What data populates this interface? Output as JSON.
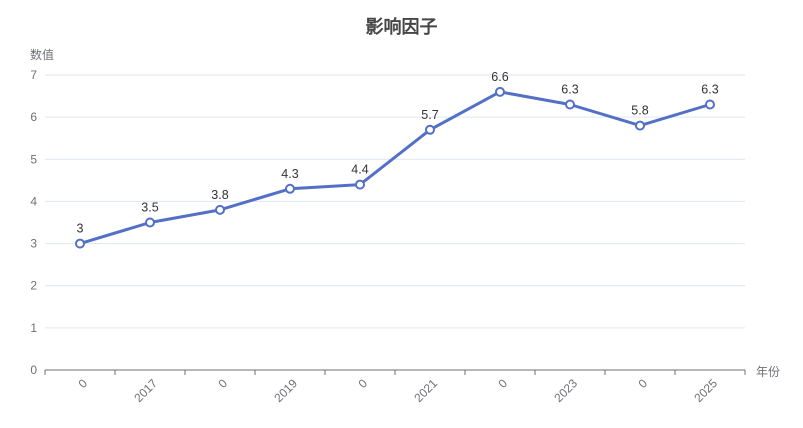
{
  "title": "影响因子",
  "chart_data": {
    "type": "line",
    "title": "影响因子",
    "categories": [
      "0",
      "2017",
      "0",
      "2019",
      "0",
      "2021",
      "0",
      "2023",
      "0",
      "2025"
    ],
    "values": [
      3,
      3.5,
      3.8,
      4.3,
      4.4,
      5.7,
      6.6,
      6.3,
      5.8,
      6.3
    ],
    "data_labels": [
      "3",
      "3.5",
      "3.8",
      "4.3",
      "4.4",
      "5.7",
      "6.6",
      "6.3",
      "5.8",
      "6.3"
    ],
    "xlabel": "年份",
    "ylabel": "数值",
    "ylim": [
      0,
      7
    ],
    "y_ticks": [
      0,
      1,
      2,
      3,
      4,
      5,
      6,
      7
    ],
    "grid": true,
    "legend_position": "none",
    "marker": "hollow-circle",
    "x_label_rotation_deg": 45,
    "colors": {
      "line": "#5470c6",
      "marker_fill": "#ffffff",
      "gridline": "#e0e6f1",
      "axis_line": "#6e7079",
      "tick_label": "#6e7079",
      "data_label": "#333333",
      "title": "#464646",
      "background": "#ffffff"
    }
  }
}
